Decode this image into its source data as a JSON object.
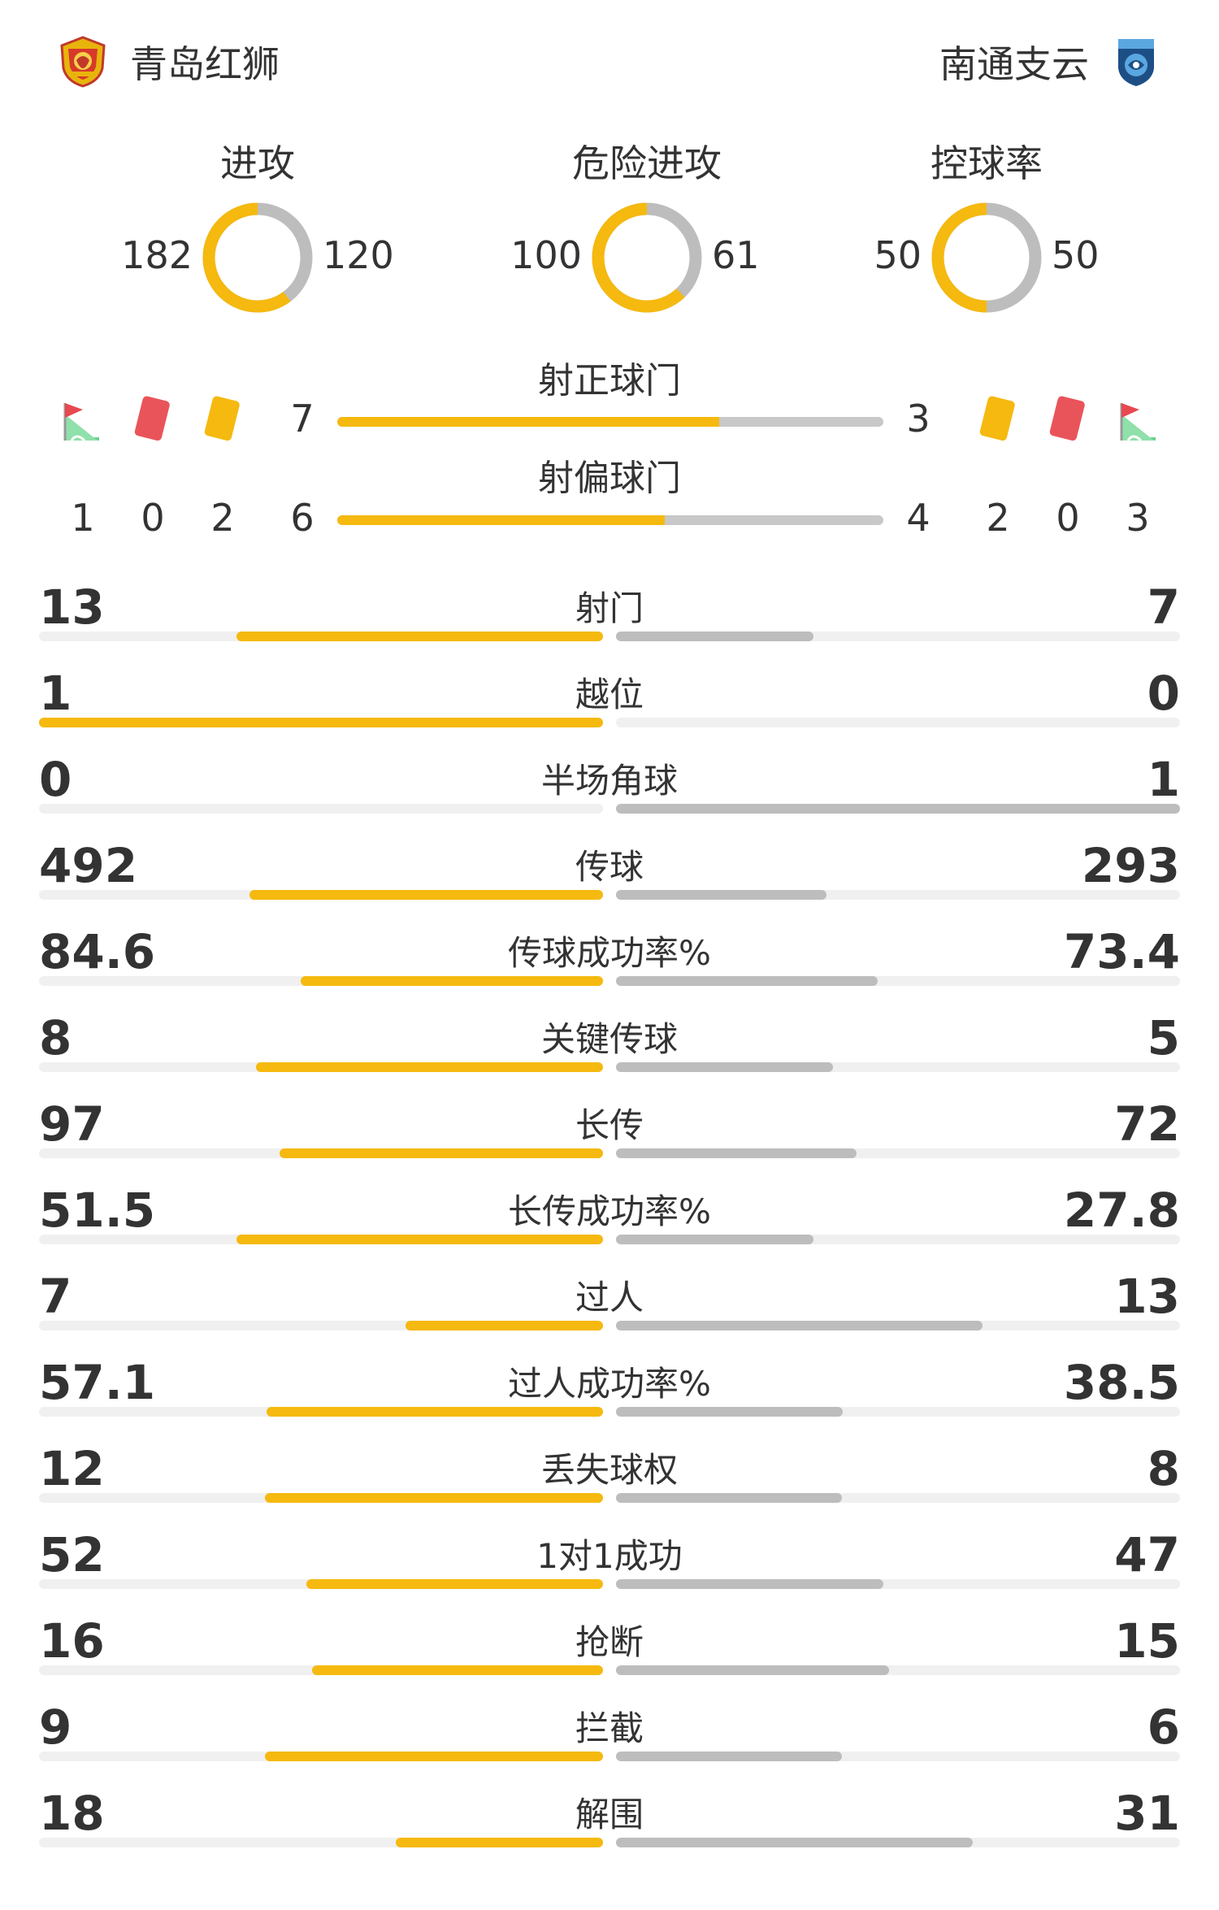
{
  "home": {
    "name": "青岛红狮"
  },
  "away": {
    "name": "南通支云"
  },
  "colors": {
    "home": "#f5b90f",
    "away": "#bdbdbd",
    "track": "#f0f0f0"
  },
  "donuts": [
    {
      "title": "进攻",
      "home": "182",
      "away": "120"
    },
    {
      "title": "危险进攻",
      "home": "100",
      "away": "61"
    },
    {
      "title": "控球率",
      "home": "50",
      "away": "50"
    }
  ],
  "shots": {
    "on_target": {
      "label": "射正球门",
      "home": "7",
      "away": "3"
    },
    "off_target": {
      "label": "射偏球门",
      "home": "6",
      "away": "4"
    }
  },
  "events": {
    "home": {
      "corners": "1",
      "red_cards": "0",
      "yellow_cards": "2"
    },
    "away": {
      "yellow_cards": "2",
      "red_cards": "0",
      "corners": "3"
    }
  },
  "stats": [
    {
      "label": "射门",
      "home": "13",
      "away": "7"
    },
    {
      "label": "越位",
      "home": "1",
      "away": "0"
    },
    {
      "label": "半场角球",
      "home": "0",
      "away": "1"
    },
    {
      "label": "传球",
      "home": "492",
      "away": "293"
    },
    {
      "label": "传球成功率%",
      "home": "84.6",
      "away": "73.4"
    },
    {
      "label": "关键传球",
      "home": "8",
      "away": "5"
    },
    {
      "label": "长传",
      "home": "97",
      "away": "72"
    },
    {
      "label": "长传成功率%",
      "home": "51.5",
      "away": "27.8"
    },
    {
      "label": "过人",
      "home": "7",
      "away": "13"
    },
    {
      "label": "过人成功率%",
      "home": "57.1",
      "away": "38.5"
    },
    {
      "label": "丢失球权",
      "home": "12",
      "away": "8"
    },
    {
      "label": "1对1成功",
      "home": "52",
      "away": "47"
    },
    {
      "label": "抢断",
      "home": "16",
      "away": "15"
    },
    {
      "label": "拦截",
      "home": "9",
      "away": "6"
    },
    {
      "label": "解围",
      "home": "18",
      "away": "31"
    }
  ]
}
